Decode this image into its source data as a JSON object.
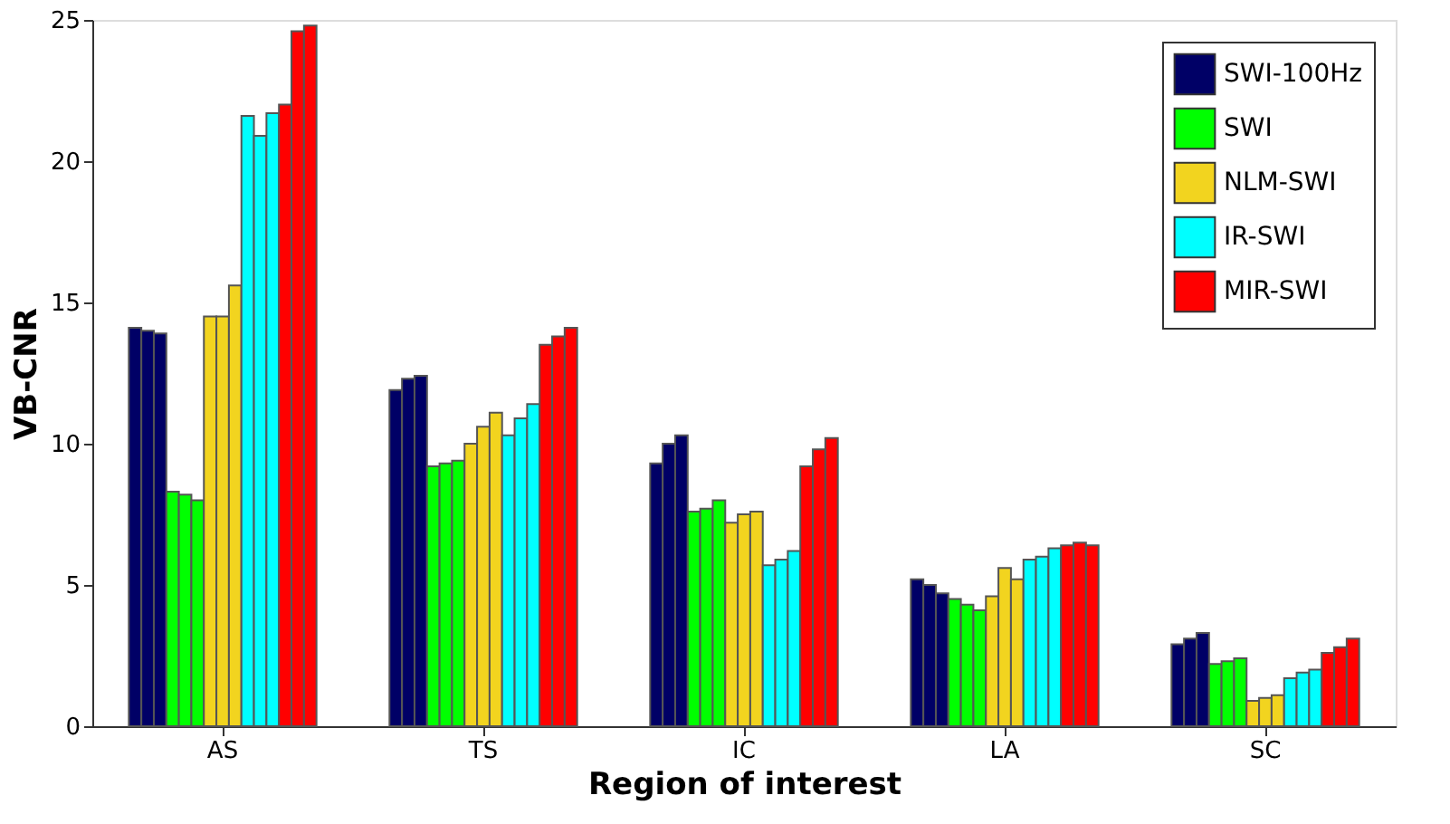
{
  "chart_data": {
    "type": "bar",
    "xlabel": "Region of interest",
    "ylabel": "VB-CNR",
    "categories": [
      "AS",
      "TS",
      "IC",
      "LA",
      "SC"
    ],
    "series": [
      {
        "name": "SWI-100Hz",
        "color": "#000066",
        "values": [
          14.1,
          11.9,
          9.3,
          5.2,
          2.9
        ]
      },
      {
        "color": "#000066",
        "values": [
          14.0,
          12.3,
          10.0,
          5.0,
          3.1
        ]
      },
      {
        "color": "#000066",
        "values": [
          13.9,
          12.4,
          10.3,
          4.7,
          3.3
        ]
      },
      {
        "name": "SWI",
        "color": "#00ff00",
        "values": [
          8.3,
          9.2,
          7.6,
          4.5,
          2.2
        ]
      },
      {
        "color": "#00ff00",
        "values": [
          8.2,
          9.3,
          7.7,
          4.3,
          2.3
        ]
      },
      {
        "color": "#00ff00",
        "values": [
          8.0,
          9.4,
          8.0,
          4.1,
          2.4
        ]
      },
      {
        "name": "NLM-SWI",
        "color": "#f2d41f",
        "values": [
          14.5,
          10.0,
          7.2,
          4.6,
          0.9
        ]
      },
      {
        "color": "#f2d41f",
        "values": [
          14.5,
          10.6,
          7.5,
          5.6,
          1.0
        ]
      },
      {
        "color": "#f2d41f",
        "values": [
          15.6,
          11.1,
          7.6,
          5.2,
          1.1
        ]
      },
      {
        "name": "IR-SWI",
        "color": "#00ffff",
        "values": [
          21.6,
          10.3,
          5.7,
          5.9,
          1.7
        ]
      },
      {
        "color": "#00ffff",
        "values": [
          20.9,
          10.9,
          5.9,
          6.0,
          1.9
        ]
      },
      {
        "color": "#00ffff",
        "values": [
          21.7,
          11.4,
          6.2,
          6.3,
          2.0
        ]
      },
      {
        "name": "MIR-SWI",
        "color": "#ff0000",
        "values": [
          22.0,
          13.5,
          9.2,
          6.4,
          2.6
        ]
      },
      {
        "color": "#ff0000",
        "values": [
          24.6,
          13.8,
          9.8,
          6.5,
          2.8
        ]
      },
      {
        "color": "#ff0000",
        "values": [
          24.8,
          14.1,
          10.2,
          6.4,
          3.1
        ]
      }
    ],
    "ylim": [
      0,
      25
    ],
    "yticks": [
      0,
      5,
      10,
      15,
      20,
      25
    ],
    "grid": false,
    "legend": "top right"
  }
}
